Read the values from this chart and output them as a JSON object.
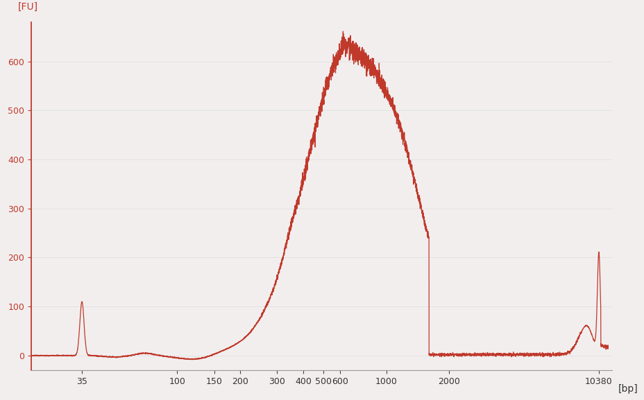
{
  "line_color": "#c0392b",
  "background_color": "#f2eeee",
  "ylabel": "[FU]",
  "xlabel": "[bp]",
  "yticks": [
    0,
    100,
    200,
    300,
    400,
    500,
    600
  ],
  "xtick_labels": [
    "35",
    "100",
    "150",
    "200",
    "300",
    "400",
    "500",
    "600",
    "1000",
    "2000",
    "10380"
  ],
  "xtick_values": [
    35,
    100,
    150,
    200,
    300,
    400,
    500,
    600,
    1000,
    2000,
    10380
  ],
  "ylim": [
    -30,
    680
  ],
  "line_width": 0.9,
  "axis_color": "#c0392b",
  "bottom_axis_color": "#999999",
  "grid_color": "#e0e0e0"
}
